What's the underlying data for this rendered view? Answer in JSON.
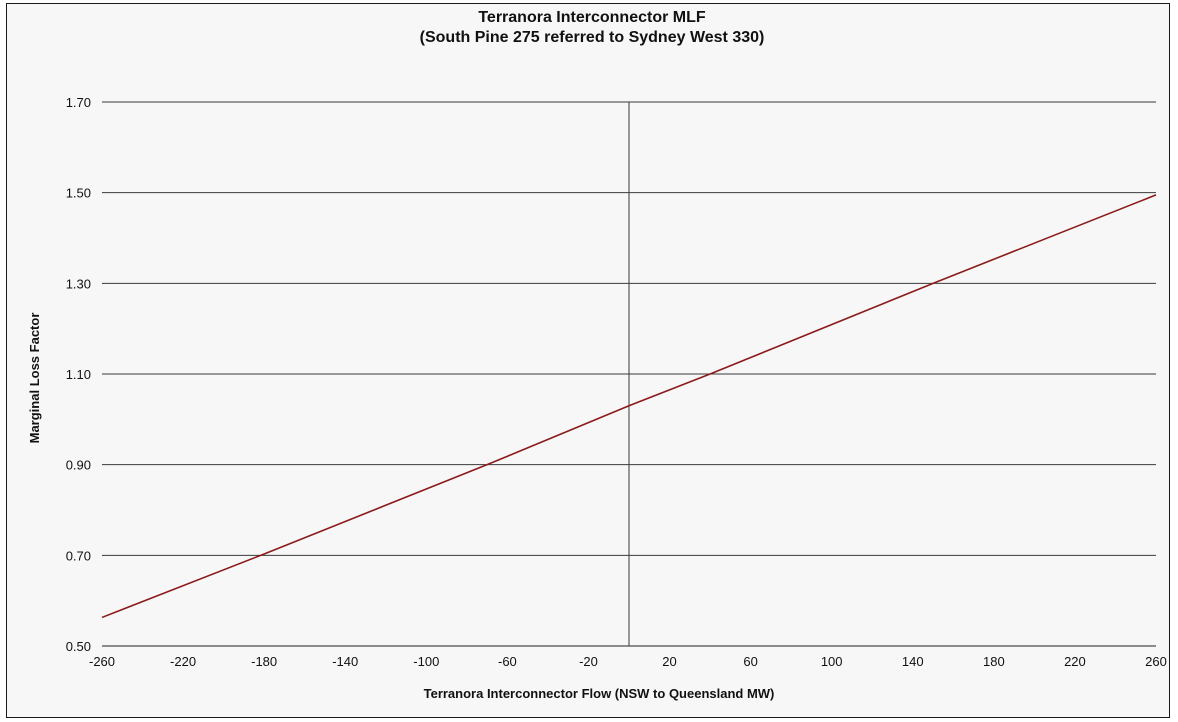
{
  "chart_data": {
    "type": "line",
    "title": "Terranora Interconnector MLF",
    "subtitle": "(South Pine 275 referred to Sydney West 330)",
    "xlabel": "Terranora Interconnector Flow (NSW to Queensland MW)",
    "ylabel": "Marginal Loss Factor",
    "xlim": [
      -260,
      260
    ],
    "ylim": [
      0.5,
      1.7
    ],
    "x_ticks": [
      -260,
      -220,
      -180,
      -140,
      -100,
      -60,
      -20,
      20,
      60,
      100,
      140,
      180,
      220,
      260
    ],
    "y_ticks": [
      0.5,
      0.7,
      0.9,
      1.1,
      1.3,
      1.5,
      1.7
    ],
    "x_tick_labels": [
      "-260",
      "-220",
      "-180",
      "-140",
      "-100",
      "-60",
      "-20",
      "20",
      "60",
      "100",
      "140",
      "180",
      "220",
      "260"
    ],
    "y_tick_labels": [
      "0.50",
      "0.70",
      "0.90",
      "1.10",
      "1.30",
      "1.50",
      "1.70"
    ],
    "grid": "horizontal",
    "vertical_reference_line_x": 0,
    "legend": "none",
    "series": [
      {
        "color": "#8b1a1a",
        "x": [
          -260,
          -180,
          -70,
          0,
          40,
          150,
          260
        ],
        "y": [
          0.563,
          0.703,
          0.9,
          1.03,
          1.1,
          1.3,
          1.495
        ]
      }
    ]
  }
}
